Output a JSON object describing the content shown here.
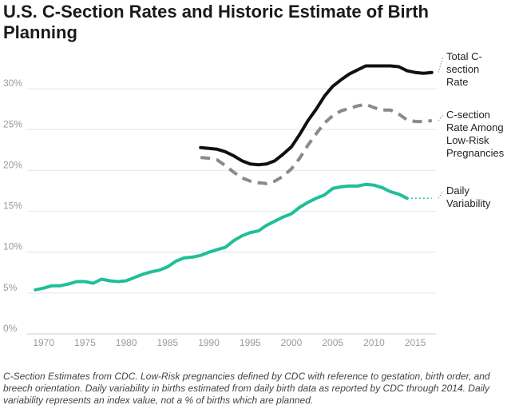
{
  "title": "U.S. C-Section Rates and Historic Estimate of Birth Planning",
  "caption": "C-Section Estimates from CDC. Low-Risk pregnancies defined by CDC with reference to gestation, birth order, and breech orientation. Daily variability in births estimated from daily birth data as reported by CDC through 2014. Daily variability represents an index value, not a % of births which are planned.",
  "chart_data": {
    "type": "line",
    "xlim": [
      1968,
      2017.5
    ],
    "ylim": [
      0,
      35
    ],
    "x_ticks": [
      1970,
      1975,
      1980,
      1985,
      1990,
      1995,
      2000,
      2005,
      2010,
      2015
    ],
    "y_ticks": [
      0,
      5,
      10,
      15,
      20,
      25,
      30
    ],
    "y_tick_labels": [
      "0%",
      "5%",
      "10%",
      "15%",
      "20%",
      "25%",
      "30%"
    ],
    "grid": "horizontal",
    "legend": "right, inline labels",
    "series": [
      {
        "name": "Total C-section Rate",
        "label_lines": [
          "Total C-",
          "section",
          "Rate"
        ],
        "color": "#111111",
        "style": "solid",
        "x": [
          1989,
          1990,
          1991,
          1992,
          1993,
          1994,
          1995,
          1996,
          1997,
          1998,
          1999,
          2000,
          2001,
          2002,
          2003,
          2004,
          2005,
          2006,
          2007,
          2008,
          2009,
          2010,
          2011,
          2012,
          2013,
          2014,
          2015,
          2016,
          2017
        ],
        "y": [
          22.8,
          22.7,
          22.6,
          22.3,
          21.8,
          21.2,
          20.8,
          20.7,
          20.8,
          21.2,
          22.0,
          22.9,
          24.4,
          26.1,
          27.5,
          29.1,
          30.3,
          31.1,
          31.8,
          32.3,
          32.8,
          32.8,
          32.8,
          32.8,
          32.7,
          32.2,
          32.0,
          31.9,
          32.0
        ]
      },
      {
        "name": "C-section Rate Among Low-Risk Pregnancies",
        "label_lines": [
          "C-section",
          "Rate Among",
          "Low-Risk",
          "Pregnancies"
        ],
        "color": "#8a8a8a",
        "style": "dashed",
        "x": [
          1989,
          1990,
          1991,
          1992,
          1993,
          1994,
          1995,
          1996,
          1997,
          1998,
          1999,
          2000,
          2001,
          2002,
          2003,
          2004,
          2005,
          2006,
          2007,
          2008,
          2009,
          2010,
          2011,
          2012,
          2013,
          2014,
          2015,
          2016,
          2017
        ],
        "y": [
          21.6,
          21.5,
          21.3,
          20.6,
          19.8,
          19.1,
          18.7,
          18.5,
          18.4,
          18.7,
          19.3,
          20.2,
          21.5,
          23.1,
          24.5,
          25.8,
          26.7,
          27.3,
          27.6,
          27.9,
          28.1,
          27.7,
          27.4,
          27.4,
          26.9,
          26.2,
          26.0,
          26.0,
          26.1
        ]
      },
      {
        "name": "Daily Variability",
        "label_lines": [
          "Daily",
          "Variability"
        ],
        "color": "#1fbf99",
        "style": "solid",
        "x": [
          1969,
          1970,
          1971,
          1972,
          1973,
          1974,
          1975,
          1976,
          1977,
          1978,
          1979,
          1980,
          1981,
          1982,
          1983,
          1984,
          1985,
          1986,
          1987,
          1988,
          1989,
          1990,
          1991,
          1992,
          1993,
          1994,
          1995,
          1996,
          1997,
          1998,
          1999,
          2000,
          2001,
          2002,
          2003,
          2004,
          2005,
          2006,
          2007,
          2008,
          2009,
          2010,
          2011,
          2012,
          2013,
          2014
        ],
        "y": [
          5.4,
          5.6,
          5.9,
          5.9,
          6.1,
          6.4,
          6.4,
          6.2,
          6.7,
          6.5,
          6.4,
          6.5,
          6.9,
          7.3,
          7.6,
          7.8,
          8.2,
          8.9,
          9.3,
          9.4,
          9.6,
          10.0,
          10.3,
          10.6,
          11.4,
          12.0,
          12.4,
          12.6,
          13.3,
          13.8,
          14.3,
          14.7,
          15.5,
          16.1,
          16.6,
          17.0,
          17.8,
          18.0,
          18.1,
          18.1,
          18.3,
          18.2,
          17.9,
          17.4,
          17.1,
          16.6
        ],
        "extension_to_x": 2017
      }
    ]
  }
}
